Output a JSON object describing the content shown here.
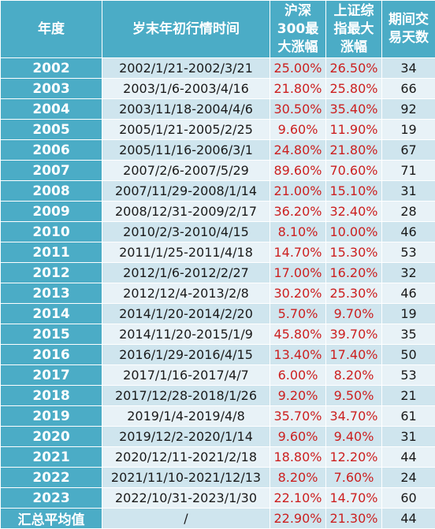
{
  "headers": {
    "year": "年度",
    "period": "岁末年初行情时间",
    "hs300_line1": "沪深",
    "hs300_line2": "300最",
    "hs300_line3": "大涨幅",
    "sse_line1": "上证综",
    "sse_line2": "指最大",
    "sse_line3": "涨幅",
    "days_line1": "期间交",
    "days_line2": "易天数"
  },
  "rows": [
    {
      "year": "2002",
      "period": "2002/1/21-2002/3/21",
      "hs300": "25.00%",
      "sse": "26.50%",
      "days": "34"
    },
    {
      "year": "2003",
      "period": "2003/1/6-2003/4/16",
      "hs300": "21.80%",
      "sse": "25.80%",
      "days": "66"
    },
    {
      "year": "2004",
      "period": "2003/11/18-2004/4/6",
      "hs300": "30.50%",
      "sse": "35.40%",
      "days": "92"
    },
    {
      "year": "2005",
      "period": "2005/1/21-2005/2/25",
      "hs300": "9.60%",
      "sse": "11.90%",
      "days": "19"
    },
    {
      "year": "2006",
      "period": "2005/11/16-2006/3/1",
      "hs300": "24.80%",
      "sse": "21.80%",
      "days": "67"
    },
    {
      "year": "2007",
      "period": "2007/2/6-2007/5/29",
      "hs300": "89.60%",
      "sse": "70.60%",
      "days": "71"
    },
    {
      "year": "2008",
      "period": "2007/11/29-2008/1/14",
      "hs300": "21.00%",
      "sse": "15.10%",
      "days": "31"
    },
    {
      "year": "2009",
      "period": "2008/12/31-2009/2/17",
      "hs300": "36.20%",
      "sse": "32.40%",
      "days": "28"
    },
    {
      "year": "2010",
      "period": "2010/2/3-2010/4/15",
      "hs300": "8.10%",
      "sse": "10.00%",
      "days": "46"
    },
    {
      "year": "2011",
      "period": "2011/1/25-2011/4/18",
      "hs300": "14.70%",
      "sse": "15.30%",
      "days": "53"
    },
    {
      "year": "2012",
      "period": "2012/1/6-2012/2/27",
      "hs300": "17.00%",
      "sse": "16.20%",
      "days": "32"
    },
    {
      "year": "2013",
      "period": "2012/12/4-2013/2/8",
      "hs300": "30.20%",
      "sse": "25.30%",
      "days": "46"
    },
    {
      "year": "2014",
      "period": "2014/1/20-2014/2/20",
      "hs300": "5.70%",
      "sse": "9.70%",
      "days": "19"
    },
    {
      "year": "2015",
      "period": "2014/11/20-2015/1/9",
      "hs300": "45.80%",
      "sse": "39.70%",
      "days": "35"
    },
    {
      "year": "2016",
      "period": "2016/1/29-2016/4/15",
      "hs300": "13.40%",
      "sse": "17.40%",
      "days": "50"
    },
    {
      "year": "2017",
      "period": "2017/1/16-2017/4/7",
      "hs300": "6.00%",
      "sse": "8.20%",
      "days": "53"
    },
    {
      "year": "2018",
      "period": "2017/12/28-2018/1/26",
      "hs300": "9.20%",
      "sse": "9.50%",
      "days": "21"
    },
    {
      "year": "2019",
      "period": "2019/1/4-2019/4/8",
      "hs300": "35.70%",
      "sse": "34.70%",
      "days": "61"
    },
    {
      "year": "2020",
      "period": "2019/12/2-2020/1/14",
      "hs300": "9.60%",
      "sse": "9.40%",
      "days": "31"
    },
    {
      "year": "2021",
      "period": "2020/12/11-2021/2/18",
      "hs300": "18.80%",
      "sse": "12.20%",
      "days": "44"
    },
    {
      "year": "2022",
      "period": "2021/11/10-2021/12/13",
      "hs300": "8.20%",
      "sse": "7.60%",
      "days": "24"
    },
    {
      "year": "2023",
      "period": "2022/10/31-2023/1/30",
      "hs300": "22.10%",
      "sse": "14.70%",
      "days": "60"
    }
  ],
  "summary": {
    "label": "汇总平均值",
    "period": "/",
    "hs300": "22.90%",
    "sse": "21.30%",
    "days": "44"
  },
  "colors": {
    "header_bg": "#4bacc6",
    "row_odd": "#cfe5ee",
    "row_even": "#e8f2f7",
    "pct_text": "#cc1f1f"
  }
}
